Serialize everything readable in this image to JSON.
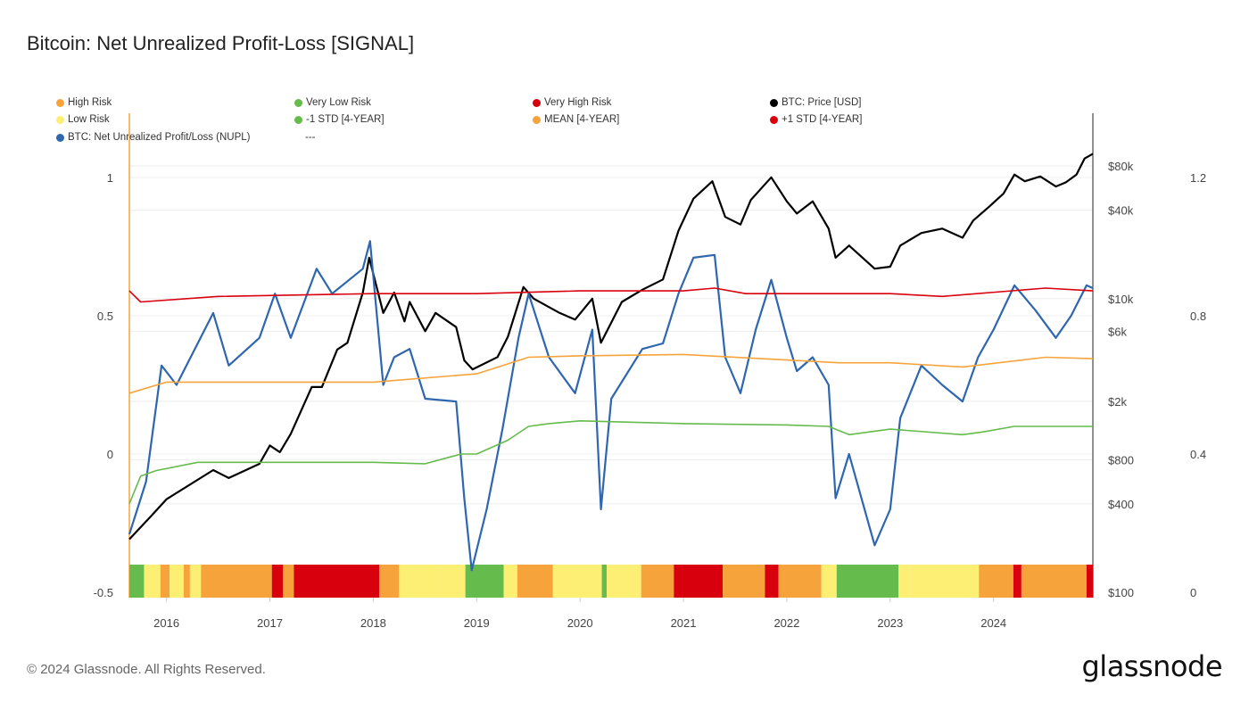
{
  "title": "Bitcoin: Net Unrealized Profit-Loss [SIGNAL]",
  "footer": "© 2024 Glassnode. All Rights Reserved.",
  "logo": "glassnode",
  "colors": {
    "high_risk": "#f7a33b",
    "low_risk": "#fdee74",
    "very_low_risk": "#65bb4c",
    "very_high_risk": "#d9000e",
    "price": "#000000",
    "nupl": "#2e66b0",
    "mean": "#f7a33b",
    "plus1": "#d9000e",
    "minus1": "#65bb4c"
  },
  "legend": [
    {
      "label": "High Risk",
      "color": "#f7a33b"
    },
    {
      "label": "Very Low Risk",
      "color": "#65bb4c"
    },
    {
      "label": "Very High Risk",
      "color": "#d9000e"
    },
    {
      "label": "BTC: Price [USD]",
      "color": "#000000"
    },
    {
      "label": "Low Risk",
      "color": "#fdee74"
    },
    {
      "label": "-1 STD [4-YEAR]",
      "color": "#65bb4c"
    },
    {
      "label": "MEAN [4-YEAR]",
      "color": "#f7a33b"
    },
    {
      "label": "+1 STD [4-YEAR]",
      "color": "#d9000e"
    },
    {
      "label": "BTC: Net Unrealized Profit/Loss (NUPL)",
      "color": "#2e66b0"
    },
    {
      "label": "---",
      "color": ""
    }
  ],
  "chart_data": {
    "type": "line",
    "title": "Bitcoin: Net Unrealized Profit-Loss [SIGNAL]",
    "x_range": [
      "2015-08-22",
      "2024-12-17"
    ],
    "x_ticks": [
      "2016",
      "2017",
      "2018",
      "2019",
      "2020",
      "2021",
      "2022",
      "2023",
      "2024"
    ],
    "y_left": {
      "range": [
        -0.5,
        1.25
      ],
      "ticks": [
        "-0.5",
        "0",
        "0.5",
        "1"
      ],
      "tick_values": [
        -0.5,
        0,
        0.5,
        1
      ]
    },
    "y_price": {
      "scale": "log",
      "range": [
        100,
        100000
      ],
      "ticks": [
        "$100",
        "$400",
        "$800",
        "$2k",
        "$6k",
        "$10k",
        "$40k",
        "$80k"
      ],
      "tick_values": [
        100,
        400,
        800,
        2000,
        6000,
        10000,
        40000,
        80000
      ]
    },
    "y_right": {
      "range": [
        0,
        1.4
      ],
      "ticks": [
        "0",
        "0.4",
        "0.8",
        "1.2"
      ],
      "tick_values": [
        0,
        0.4,
        0.8,
        1.2
      ]
    },
    "grid": true,
    "legend_position": "top",
    "series": [
      {
        "name": "BTC: Price [USD]",
        "axis": "price",
        "color": "#000000",
        "points": [
          [
            "2015-08-22",
            230
          ],
          [
            "2015-11-07",
            330
          ],
          [
            "2016-01-01",
            430
          ],
          [
            "2016-06-14",
            680
          ],
          [
            "2016-08-08",
            600
          ],
          [
            "2016-11-25",
            750
          ],
          [
            "2017-01-01",
            1000
          ],
          [
            "2017-02-06",
            900
          ],
          [
            "2017-03-14",
            1200
          ],
          [
            "2017-05-27",
            2500
          ],
          [
            "2017-07-02",
            2500
          ],
          [
            "2017-08-26",
            4500
          ],
          [
            "2017-10-01",
            5000
          ],
          [
            "2017-11-25",
            11000
          ],
          [
            "2017-12-17",
            19000
          ],
          [
            "2018-02-06",
            8000
          ],
          [
            "2018-03-14",
            11000
          ],
          [
            "2018-04-20",
            7000
          ],
          [
            "2018-05-08",
            9500
          ],
          [
            "2018-07-02",
            6000
          ],
          [
            "2018-08-08",
            8000
          ],
          [
            "2018-10-20",
            6400
          ],
          [
            "2018-11-18",
            3800
          ],
          [
            "2018-12-17",
            3300
          ],
          [
            "2019-03-14",
            4000
          ],
          [
            "2019-04-20",
            5500
          ],
          [
            "2019-06-14",
            12000
          ],
          [
            "2019-07-20",
            10000
          ],
          [
            "2019-10-20",
            8000
          ],
          [
            "2019-12-14",
            7200
          ],
          [
            "2020-02-14",
            10000
          ],
          [
            "2020-03-14",
            5000
          ],
          [
            "2020-05-27",
            9500
          ],
          [
            "2020-08-08",
            11500
          ],
          [
            "2020-10-20",
            13500
          ],
          [
            "2020-12-14",
            29000
          ],
          [
            "2021-02-06",
            48000
          ],
          [
            "2021-04-12",
            63000
          ],
          [
            "2021-05-27",
            36000
          ],
          [
            "2021-07-20",
            32000
          ],
          [
            "2021-08-26",
            47000
          ],
          [
            "2021-11-07",
            67000
          ],
          [
            "2022-01-01",
            46000
          ],
          [
            "2022-02-06",
            38000
          ],
          [
            "2022-04-01",
            46000
          ],
          [
            "2022-05-27",
            30000
          ],
          [
            "2022-06-21",
            19000
          ],
          [
            "2022-08-08",
            23000
          ],
          [
            "2022-11-07",
            16000
          ],
          [
            "2023-01-01",
            16500
          ],
          [
            "2023-02-06",
            23000
          ],
          [
            "2023-04-20",
            28000
          ],
          [
            "2023-07-02",
            30000
          ],
          [
            "2023-09-13",
            26000
          ],
          [
            "2023-10-20",
            34000
          ],
          [
            "2023-12-14",
            42000
          ],
          [
            "2024-02-06",
            52000
          ],
          [
            "2024-03-14",
            70000
          ],
          [
            "2024-04-20",
            63000
          ],
          [
            "2024-06-14",
            68000
          ],
          [
            "2024-08-08",
            58000
          ],
          [
            "2024-09-13",
            62000
          ],
          [
            "2024-10-20",
            70000
          ],
          [
            "2024-11-18",
            90000
          ],
          [
            "2024-12-17",
            97000
          ]
        ]
      },
      {
        "name": "BTC: Net Unrealized Profit/Loss (NUPL)",
        "axis": "left",
        "color": "#2e66b0",
        "points": [
          [
            "2015-08-22",
            -0.29
          ],
          [
            "2015-10-20",
            -0.1
          ],
          [
            "2015-12-14",
            0.32
          ],
          [
            "2016-02-06",
            0.25
          ],
          [
            "2016-06-14",
            0.51
          ],
          [
            "2016-08-08",
            0.32
          ],
          [
            "2016-11-25",
            0.42
          ],
          [
            "2017-01-19",
            0.58
          ],
          [
            "2017-03-14",
            0.42
          ],
          [
            "2017-06-14",
            0.67
          ],
          [
            "2017-08-08",
            0.58
          ],
          [
            "2017-11-25",
            0.67
          ],
          [
            "2017-12-20",
            0.77
          ],
          [
            "2018-02-06",
            0.25
          ],
          [
            "2018-03-14",
            0.35
          ],
          [
            "2018-05-08",
            0.38
          ],
          [
            "2018-07-02",
            0.2
          ],
          [
            "2018-10-20",
            0.19
          ],
          [
            "2018-11-18",
            -0.16
          ],
          [
            "2018-12-14",
            -0.42
          ],
          [
            "2019-02-06",
            -0.2
          ],
          [
            "2019-04-01",
            0.09
          ],
          [
            "2019-05-27",
            0.42
          ],
          [
            "2019-07-02",
            0.58
          ],
          [
            "2019-09-13",
            0.35
          ],
          [
            "2019-12-14",
            0.22
          ],
          [
            "2020-02-14",
            0.45
          ],
          [
            "2020-03-14",
            -0.2
          ],
          [
            "2020-04-20",
            0.2
          ],
          [
            "2020-08-08",
            0.38
          ],
          [
            "2020-10-20",
            0.4
          ],
          [
            "2020-12-14",
            0.58
          ],
          [
            "2021-02-06",
            0.71
          ],
          [
            "2021-04-20",
            0.72
          ],
          [
            "2021-05-27",
            0.35
          ],
          [
            "2021-07-20",
            0.22
          ],
          [
            "2021-09-13",
            0.45
          ],
          [
            "2021-11-07",
            0.63
          ],
          [
            "2022-01-01",
            0.42
          ],
          [
            "2022-02-06",
            0.3
          ],
          [
            "2022-04-01",
            0.35
          ],
          [
            "2022-05-27",
            0.25
          ],
          [
            "2022-06-21",
            -0.16
          ],
          [
            "2022-08-08",
            0.0
          ],
          [
            "2022-11-07",
            -0.33
          ],
          [
            "2023-01-01",
            -0.2
          ],
          [
            "2023-02-06",
            0.13
          ],
          [
            "2023-04-20",
            0.32
          ],
          [
            "2023-07-02",
            0.25
          ],
          [
            "2023-09-13",
            0.19
          ],
          [
            "2023-11-07",
            0.35
          ],
          [
            "2024-01-01",
            0.45
          ],
          [
            "2024-03-14",
            0.61
          ],
          [
            "2024-05-27",
            0.52
          ],
          [
            "2024-08-08",
            0.42
          ],
          [
            "2024-10-01",
            0.5
          ],
          [
            "2024-11-25",
            0.61
          ],
          [
            "2024-12-17",
            0.6
          ]
        ]
      },
      {
        "name": "+1 STD [4-YEAR]",
        "axis": "left",
        "color": "#d9000e",
        "points": [
          [
            "2015-08-22",
            0.59
          ],
          [
            "2015-10-01",
            0.55
          ],
          [
            "2016-07-02",
            0.57
          ],
          [
            "2018-01-01",
            0.58
          ],
          [
            "2019-01-01",
            0.58
          ],
          [
            "2020-01-01",
            0.59
          ],
          [
            "2021-01-01",
            0.59
          ],
          [
            "2021-04-20",
            0.6
          ],
          [
            "2021-08-08",
            0.58
          ],
          [
            "2022-01-01",
            0.58
          ],
          [
            "2023-01-01",
            0.58
          ],
          [
            "2023-07-02",
            0.57
          ],
          [
            "2024-07-02",
            0.6
          ],
          [
            "2024-12-17",
            0.59
          ]
        ]
      },
      {
        "name": "MEAN [4-YEAR]",
        "axis": "left",
        "color": "#f7a33b",
        "points": [
          [
            "2015-08-22",
            0.22
          ],
          [
            "2016-01-01",
            0.26
          ],
          [
            "2017-01-01",
            0.26
          ],
          [
            "2018-01-01",
            0.26
          ],
          [
            "2019-01-01",
            0.29
          ],
          [
            "2019-07-02",
            0.35
          ],
          [
            "2020-01-01",
            0.355
          ],
          [
            "2021-01-01",
            0.36
          ],
          [
            "2022-01-01",
            0.34
          ],
          [
            "2022-07-02",
            0.33
          ],
          [
            "2023-01-01",
            0.33
          ],
          [
            "2023-09-13",
            0.315
          ],
          [
            "2024-07-02",
            0.35
          ],
          [
            "2024-12-17",
            0.345
          ]
        ]
      },
      {
        "name": "-1 STD [4-YEAR]",
        "axis": "left",
        "color": "#65bb4c",
        "points": [
          [
            "2015-08-22",
            -0.18
          ],
          [
            "2015-10-01",
            -0.08
          ],
          [
            "2015-11-25",
            -0.06
          ],
          [
            "2016-04-20",
            -0.03
          ],
          [
            "2017-01-01",
            -0.03
          ],
          [
            "2018-01-01",
            -0.03
          ],
          [
            "2018-07-02",
            -0.035
          ],
          [
            "2018-11-07",
            0.0
          ],
          [
            "2019-01-01",
            0.0
          ],
          [
            "2019-04-20",
            0.05
          ],
          [
            "2019-07-02",
            0.1
          ],
          [
            "2019-09-13",
            0.11
          ],
          [
            "2020-01-01",
            0.12
          ],
          [
            "2021-01-01",
            0.11
          ],
          [
            "2022-01-01",
            0.105
          ],
          [
            "2022-05-27",
            0.1
          ],
          [
            "2022-08-08",
            0.07
          ],
          [
            "2023-01-01",
            0.09
          ],
          [
            "2023-09-13",
            0.07
          ],
          [
            "2023-11-25",
            0.08
          ],
          [
            "2024-03-14",
            0.1
          ],
          [
            "2024-12-17",
            0.1
          ]
        ]
      }
    ],
    "risk_bands": [
      [
        "2015-08-22",
        "very_low_risk"
      ],
      [
        "2015-10-13",
        "low_risk"
      ],
      [
        "2015-12-10",
        "high_risk"
      ],
      [
        "2016-01-12",
        "low_risk"
      ],
      [
        "2016-03-01",
        "high_risk"
      ],
      [
        "2016-03-23",
        "low_risk"
      ],
      [
        "2016-05-01",
        "high_risk"
      ],
      [
        "2017-01-08",
        "very_high_risk"
      ],
      [
        "2017-02-17",
        "high_risk"
      ],
      [
        "2017-03-25",
        "very_high_risk"
      ],
      [
        "2018-01-22",
        "high_risk"
      ],
      [
        "2018-04-01",
        "low_risk"
      ],
      [
        "2018-08-15",
        "low_risk"
      ],
      [
        "2018-11-22",
        "very_low_risk"
      ],
      [
        "2019-04-05",
        "low_risk"
      ],
      [
        "2019-05-23",
        "high_risk"
      ],
      [
        "2019-09-27",
        "low_risk"
      ],
      [
        "2020-03-17",
        "very_low_risk"
      ],
      [
        "2020-04-04",
        "low_risk"
      ],
      [
        "2020-08-04",
        "high_risk"
      ],
      [
        "2020-11-28",
        "very_high_risk"
      ],
      [
        "2021-05-18",
        "high_risk"
      ],
      [
        "2021-10-15",
        "very_high_risk"
      ],
      [
        "2021-12-02",
        "high_risk"
      ],
      [
        "2022-05-01",
        "low_risk"
      ],
      [
        "2022-06-25",
        "very_low_risk"
      ],
      [
        "2023-01-30",
        "low_risk"
      ],
      [
        "2023-03-11",
        "low_risk"
      ],
      [
        "2023-11-10",
        "high_risk"
      ],
      [
        "2024-03-10",
        "very_high_risk"
      ],
      [
        "2024-04-08",
        "high_risk"
      ],
      [
        "2024-11-25",
        "very_high_risk"
      ]
    ]
  }
}
